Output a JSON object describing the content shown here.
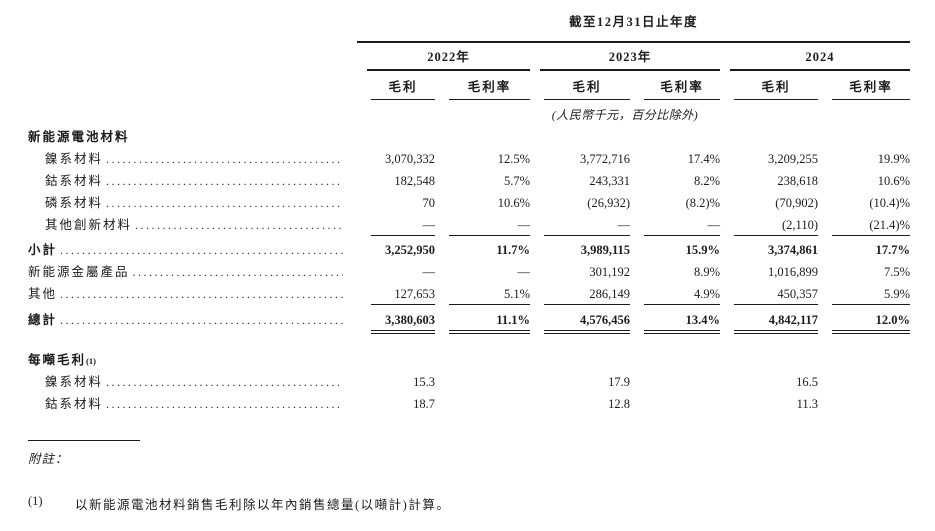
{
  "table": {
    "title": "截至12月31日止年度",
    "unit_note": "(人民幣千元，百分比除外)",
    "year_groups": [
      {
        "label": "2022年"
      },
      {
        "label": "2023年"
      },
      {
        "label": "2024"
      }
    ],
    "col_headers": [
      "毛利",
      "毛利率",
      "毛利",
      "毛利率",
      "毛利",
      "毛利率"
    ],
    "rows": [
      {
        "type": "section",
        "label": "新能源電池材料",
        "dots": false,
        "values": [
          "",
          "",
          "",
          "",
          "",
          ""
        ]
      },
      {
        "type": "item",
        "label": "鎳系材料",
        "indent": true,
        "dots": true,
        "values": [
          "3,070,332",
          "12.5%",
          "3,772,716",
          "17.4%",
          "3,209,255",
          "19.9%"
        ]
      },
      {
        "type": "item",
        "label": "鈷系材料",
        "indent": true,
        "dots": true,
        "values": [
          "182,548",
          "5.7%",
          "243,331",
          "8.2%",
          "238,618",
          "10.6%"
        ]
      },
      {
        "type": "item",
        "label": "磷系材料",
        "indent": true,
        "dots": true,
        "values": [
          "70",
          "10.6%",
          "(26,932)",
          "(8.2)%",
          "(70,902)",
          "(10.4)%"
        ]
      },
      {
        "type": "item",
        "label": "其他創新材料",
        "indent": true,
        "dots": true,
        "underline": "single",
        "values": [
          "—",
          "—",
          "—",
          "—",
          "(2,110)",
          "(21.4)%"
        ]
      },
      {
        "type": "item",
        "label": "小計",
        "bold": true,
        "dots": true,
        "values": [
          "3,252,950",
          "11.7%",
          "3,989,115",
          "15.9%",
          "3,374,861",
          "17.7%"
        ]
      },
      {
        "type": "item",
        "label": "新能源金屬產品",
        "dots": true,
        "values": [
          "—",
          "—",
          "301,192",
          "8.9%",
          "1,016,899",
          "7.5%"
        ]
      },
      {
        "type": "item",
        "label": "其他",
        "dots": true,
        "underline": "single",
        "values": [
          "127,653",
          "5.1%",
          "286,149",
          "4.9%",
          "450,357",
          "5.9%"
        ]
      },
      {
        "type": "item",
        "label": "總計",
        "bold": true,
        "dots": true,
        "underline": "double",
        "values": [
          "3,380,603",
          "11.1%",
          "4,576,456",
          "13.4%",
          "4,842,117",
          "12.0%"
        ]
      },
      {
        "type": "spacer"
      },
      {
        "type": "section",
        "label": "每噸毛利",
        "sup": "(1)",
        "dots": false,
        "values": [
          "",
          "",
          "",
          "",
          "",
          ""
        ]
      },
      {
        "type": "item",
        "label": "鎳系材料",
        "indent": true,
        "dots": true,
        "values": [
          "15.3",
          "",
          "17.9",
          "",
          "16.5",
          ""
        ]
      },
      {
        "type": "item",
        "label": "鈷系材料",
        "indent": true,
        "dots": true,
        "values": [
          "18.7",
          "",
          "12.8",
          "",
          "11.3",
          ""
        ]
      }
    ]
  },
  "footnote": {
    "label": "附註：",
    "items": [
      {
        "marker": "(1)",
        "text": "以新能源電池材料銷售毛利除以年內銷售總量(以噸計)計算。"
      }
    ]
  }
}
